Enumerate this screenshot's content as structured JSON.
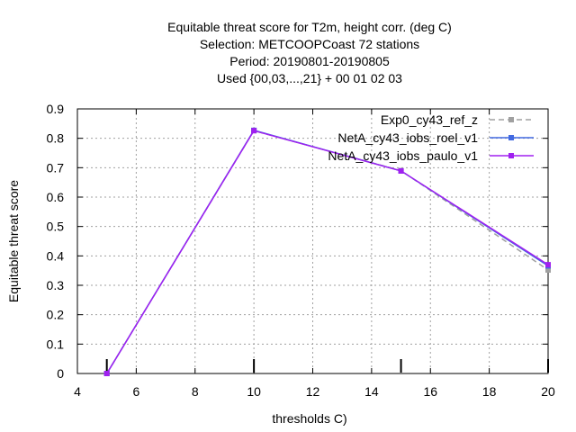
{
  "chart_data": {
    "type": "line",
    "title": [
      "Equitable threat score  for T2m, height corr. (deg C)",
      "Selection: METCOOPCoast     72 stations",
      "Period: 20190801-20190805",
      "Used {00,03,...,21} + 00 01 02 03"
    ],
    "xlabel": "thresholds C)",
    "ylabel": "Equitable threat score",
    "xlim": [
      4,
      20
    ],
    "ylim": [
      0,
      0.9
    ],
    "xticks": [
      4,
      6,
      8,
      10,
      12,
      14,
      16,
      18,
      20
    ],
    "yticks": [
      0,
      0.1,
      0.2,
      0.3,
      0.4,
      0.5,
      0.6,
      0.7,
      0.8,
      0.9
    ],
    "xtick_labels": [
      "4",
      "6",
      "8",
      "10",
      "12",
      "14",
      "16",
      "18",
      "20"
    ],
    "ytick_labels": [
      "0",
      "0.1",
      "0.2",
      "0.3",
      "0.4",
      "0.5",
      "0.6",
      "0.7",
      "0.8",
      "0.9"
    ],
    "grid": true,
    "legend_position": "top-right",
    "series": [
      {
        "name": "Exp0_cy43_ref_z",
        "color": "#a0a0a0",
        "dash": true,
        "x": [
          5,
          10,
          15,
          20
        ],
        "y": [
          0.0,
          0.826,
          0.69,
          0.352
        ]
      },
      {
        "name": "NetA_cy43_iobs_roel_v1",
        "color": "#4169e1",
        "dash": false,
        "x": [
          5,
          10,
          15,
          20
        ],
        "y": [
          0.0,
          0.827,
          0.689,
          0.366
        ]
      },
      {
        "name": "NetA_cy43_iobs_paulo_v1",
        "color": "#a020f0",
        "dash": false,
        "x": [
          5,
          10,
          15,
          20
        ],
        "y": [
          0.0,
          0.826,
          0.689,
          0.37
        ]
      }
    ],
    "sample_marks_x": [
      5,
      10,
      15,
      20
    ]
  }
}
